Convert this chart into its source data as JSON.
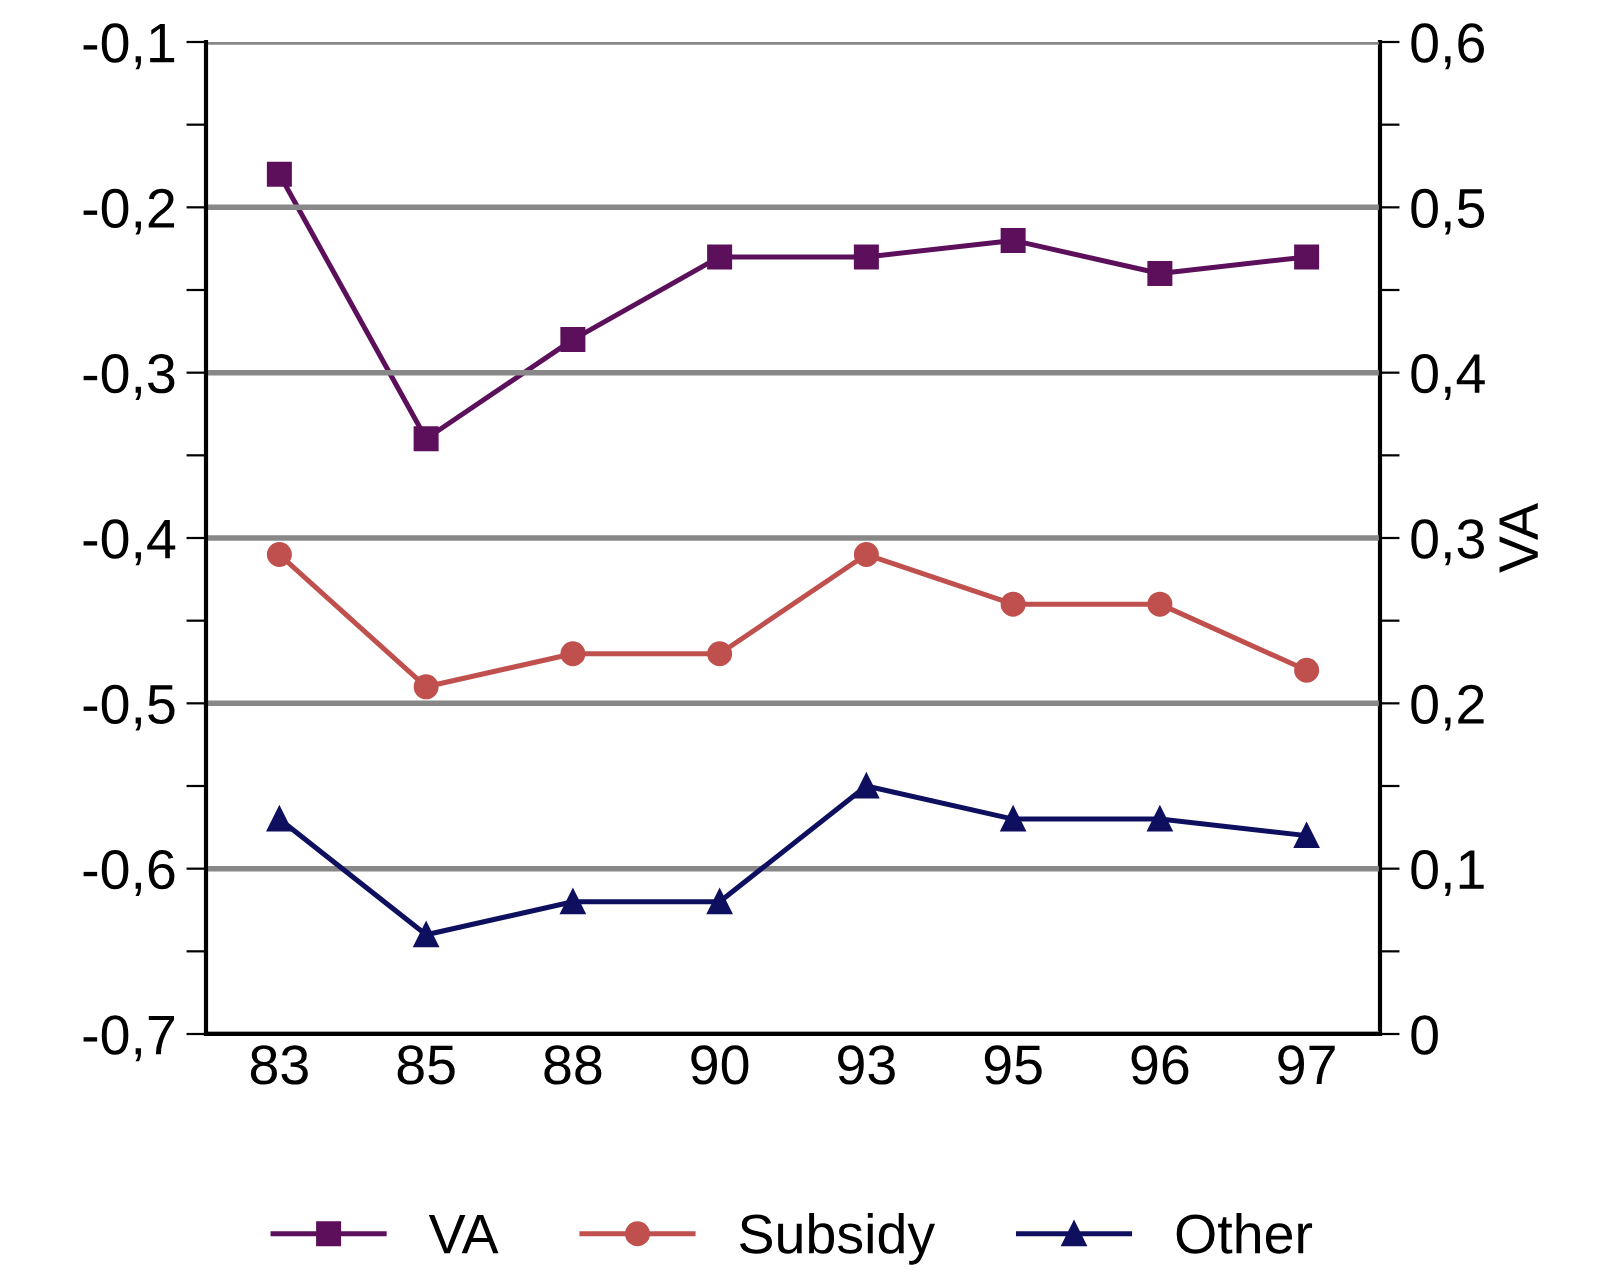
{
  "chart_data": {
    "type": "line",
    "y2label": "VA",
    "categories": [
      "83",
      "85",
      "88",
      "90",
      "93",
      "95",
      "96",
      "97"
    ],
    "series": [
      {
        "name": "VA",
        "color": "#5c0f5a",
        "marker": "square",
        "axis": "y2",
        "values": [
          0.52,
          0.36,
          0.42,
          0.47,
          0.47,
          0.48,
          0.46,
          0.47
        ]
      },
      {
        "name": "Subsidy",
        "color": "#c0504d",
        "marker": "circle",
        "values": [
          -0.41,
          -0.49,
          -0.47,
          -0.47,
          -0.41,
          -0.44,
          -0.44,
          -0.48
        ]
      },
      {
        "name": "Other",
        "color": "#0f0f60",
        "marker": "triangle",
        "values": [
          -0.57,
          -0.64,
          -0.62,
          -0.62,
          -0.55,
          -0.57,
          -0.57,
          -0.58
        ]
      }
    ],
    "ylim": [
      -0.7,
      -0.1
    ],
    "yticks": [
      {
        "value": -0.7,
        "label": "-0,7"
      },
      {
        "value": -0.65,
        "label": null
      },
      {
        "value": -0.6,
        "label": "-0,6"
      },
      {
        "value": -0.55,
        "label": null
      },
      {
        "value": -0.5,
        "label": "-0,5"
      },
      {
        "value": -0.45,
        "label": null
      },
      {
        "value": -0.4,
        "label": "-0,4"
      },
      {
        "value": -0.35,
        "label": null
      },
      {
        "value": -0.3,
        "label": "-0,3"
      },
      {
        "value": -0.25,
        "label": null
      },
      {
        "value": -0.2,
        "label": "-0,2"
      },
      {
        "value": -0.15,
        "label": null
      },
      {
        "value": -0.1,
        "label": "-0,1"
      }
    ],
    "y2lim": [
      0,
      0.6
    ],
    "y2ticks": [
      0,
      {
        "value": 0.05,
        "label": null
      },
      {
        "value": 0.1,
        "label": "0,1"
      },
      {
        "value": 0.15,
        "label": null
      },
      {
        "value": 0.2,
        "label": "0,2"
      },
      {
        "value": 0.25,
        "label": null
      },
      {
        "value": 0.3,
        "label": "0,3"
      },
      {
        "value": 0.35,
        "label": null
      },
      {
        "value": 0.4,
        "label": "0,4"
      },
      {
        "value": 0.45,
        "label": null
      },
      {
        "value": 0.5,
        "label": "0,5"
      },
      {
        "value": 0.55,
        "label": null
      },
      {
        "value": 0.6,
        "label": "0,6"
      }
    ],
    "grid": "y",
    "legend": "bottom",
    "line_style": "solid"
  }
}
